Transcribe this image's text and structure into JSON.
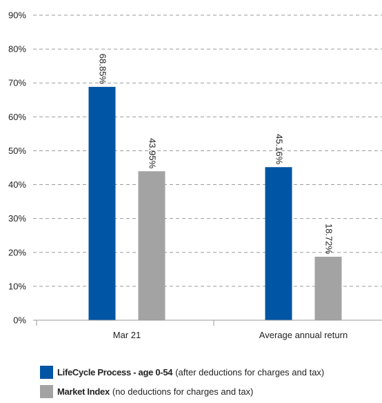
{
  "chart_data": {
    "type": "bar",
    "categories": [
      "Mar 21",
      "Average annual return"
    ],
    "series": [
      {
        "name": "LifeCycle Process - age 0-54",
        "note": "(after deductions for charges and tax)",
        "color": "#0055a4",
        "values": [
          68.85,
          45.16
        ],
        "labels": [
          "68.85%",
          "45.16%"
        ]
      },
      {
        "name": "Market Index",
        "note": "(no deductions for charges and tax)",
        "color": "#a3a3a3",
        "values": [
          43.95,
          18.72
        ],
        "labels": [
          "43.95%",
          "18.72%"
        ]
      }
    ],
    "ylim": [
      0,
      90
    ],
    "yticks": [
      0,
      10,
      20,
      30,
      40,
      50,
      60,
      70,
      80,
      90
    ],
    "ytick_labels": [
      "0%",
      "10%",
      "20%",
      "30%",
      "40%",
      "50%",
      "60%",
      "70%",
      "80%",
      "90%"
    ],
    "grid": true,
    "legend_position": "bottom-left"
  }
}
